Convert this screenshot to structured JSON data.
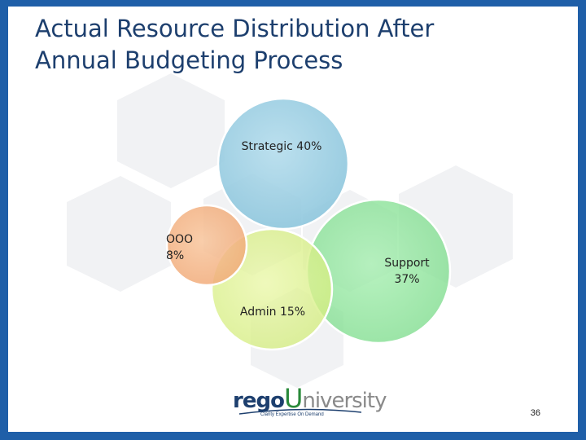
{
  "slide": {
    "title": "Actual Resource Distribution After\nAnnual Budgeting Process",
    "page_number": "36"
  },
  "diagram": {
    "type": "venn",
    "sets": [
      {
        "name": "Strategic",
        "label": "Strategic 40%",
        "percent": 40,
        "color": "#8fc8de"
      },
      {
        "name": "Support",
        "label": "Support\n37%",
        "percent": 37,
        "color": "#7ddf8e"
      },
      {
        "name": "Admin",
        "label": "Admin 15%",
        "percent": 15,
        "color": "#d8ef86"
      },
      {
        "name": "OOO",
        "label": "OOO\n8%",
        "percent": 8,
        "color": "#f4b07e"
      }
    ]
  },
  "logo": {
    "brand_primary": "rego",
    "brand_letter": "U",
    "brand_secondary": "niversity",
    "tagline": "Clarity Expertise On Demand"
  },
  "colors": {
    "frame": "#1f5fa8",
    "title": "#1d3f6e"
  }
}
